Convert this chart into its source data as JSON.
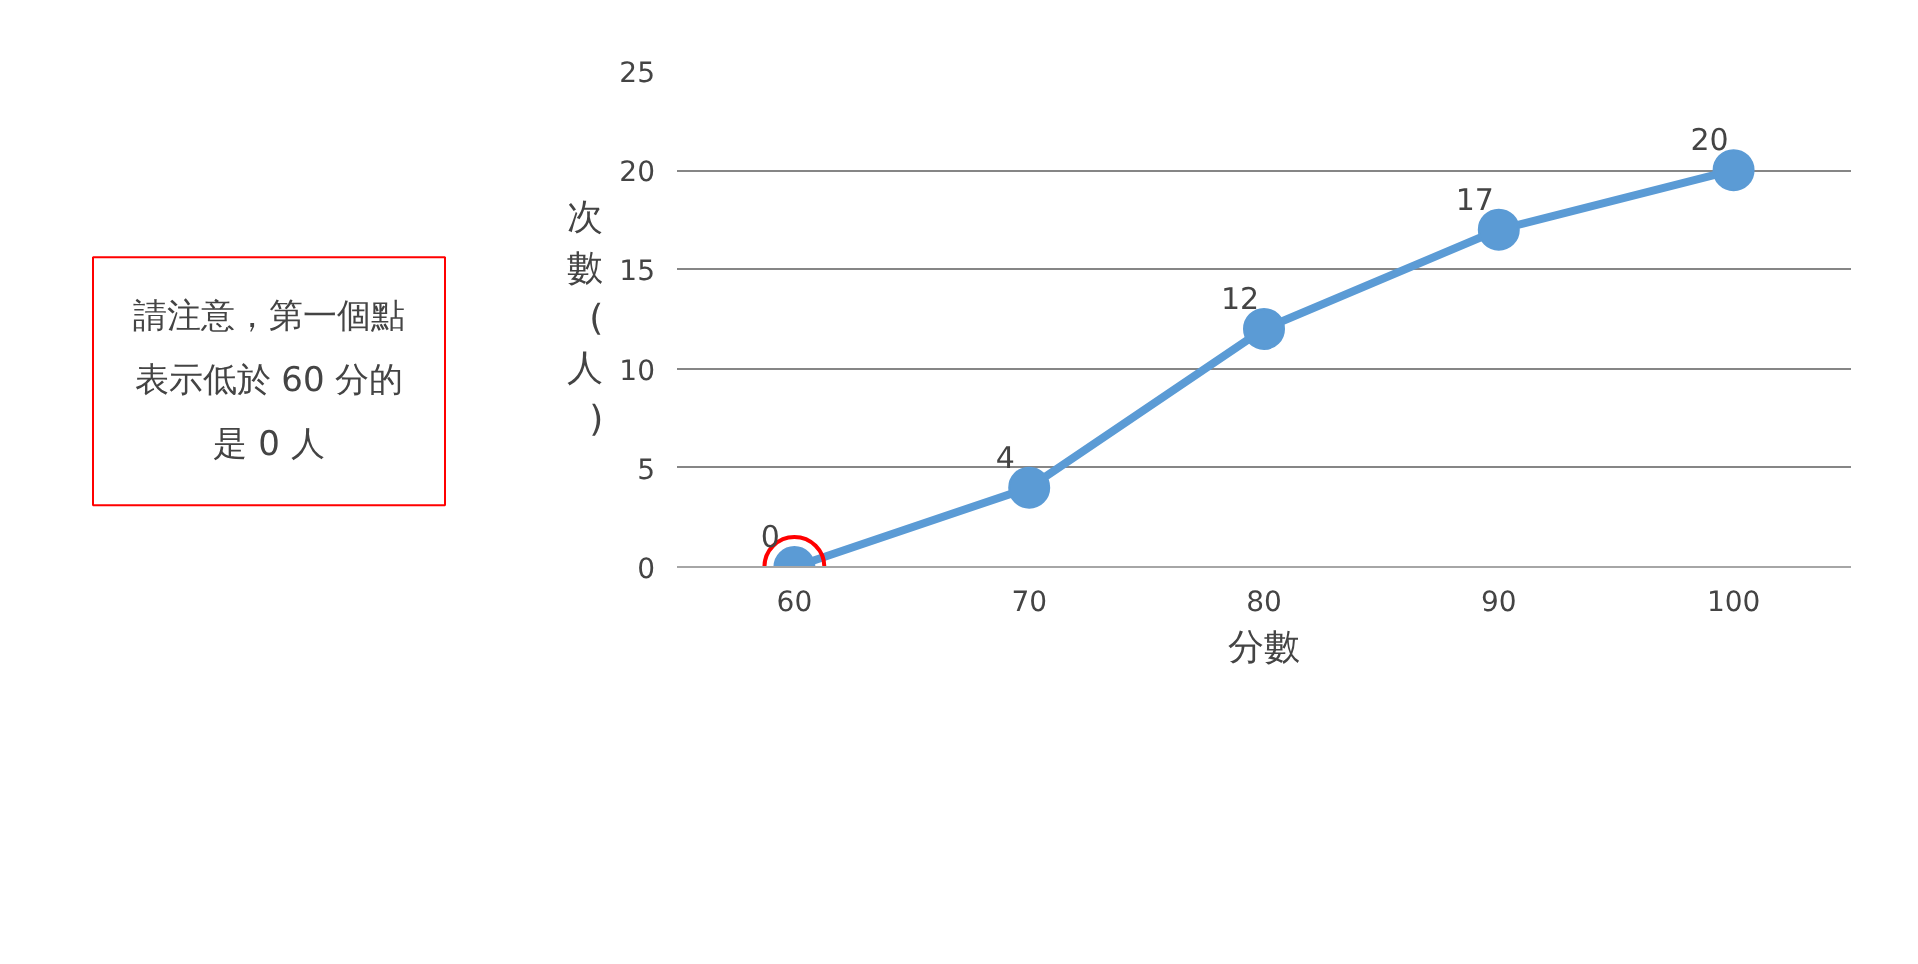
{
  "chart_data": {
    "type": "line",
    "xlabel": "分數",
    "ylabel": "次數(人)",
    "categories": [
      "60",
      "70",
      "80",
      "90",
      "100"
    ],
    "series": [
      {
        "color": "#5b9bd5",
        "values": [
          0,
          4,
          12,
          17,
          20
        ]
      }
    ],
    "ylim": [
      0,
      25
    ],
    "yticks": [
      0,
      5,
      10,
      15,
      20,
      25
    ],
    "grid": "y",
    "marker": "circle",
    "data_labels": true,
    "annotations": [
      "請注意，第一個點表示低於 60 分的是 0 人"
    ]
  }
}
